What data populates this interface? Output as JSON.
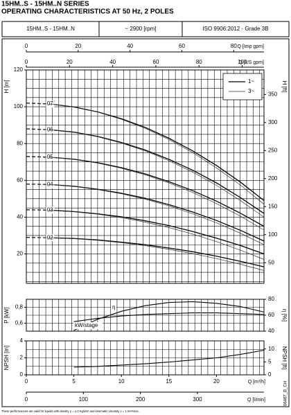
{
  "header": {
    "series_title": "15HM..S - 15HM..N SERIES",
    "subtitle": "OPERATING CHARACTERISTICS AT 50 Hz, 2 POLES",
    "model": "15HM..S - 15HM..N",
    "speed": "~ 2900 [rpm]",
    "standard": "ISO 9906:2012 - Grade 3B"
  },
  "chart_data": [
    {
      "type": "line",
      "xlim": [
        0,
        25
      ],
      "top_axes": [
        {
          "label": "Q [Imp gpm]",
          "xlim": [
            0,
            91.67
          ],
          "xticks": [
            0,
            20,
            40,
            60,
            80
          ],
          "grid": [
            0,
            2.5,
            5,
            7.5,
            10,
            12.5,
            15,
            17.5,
            20,
            22.5,
            25,
            27.5,
            30,
            32.5,
            35,
            37.5,
            40,
            42.5,
            45,
            47.5,
            50,
            52.5,
            55,
            57.5,
            60,
            62.5,
            65,
            67.5,
            70,
            72.5,
            75,
            77.5,
            80,
            82.5,
            85,
            87.5,
            90
          ]
        },
        {
          "label": "Q [US gpm]",
          "xlim": [
            0,
            110.07
          ],
          "xticks": [
            0,
            20,
            40,
            60,
            80,
            100
          ]
        }
      ],
      "y_label": "H [m]",
      "ylim": [
        4,
        120
      ],
      "yticks": [
        20,
        40,
        60,
        80,
        100,
        120
      ],
      "ygrid": [
        5,
        10,
        15,
        20,
        25,
        30,
        35,
        40,
        45,
        50,
        55,
        60,
        65,
        70,
        75,
        80,
        85,
        90,
        95,
        100,
        105,
        110,
        115,
        120
      ],
      "y2_label": "H [ft]",
      "y2lim": [
        13.12,
        393.7
      ],
      "y2ticks": [
        50,
        100,
        150,
        200,
        250,
        300,
        350
      ],
      "legend": "upper right",
      "x": [
        0,
        2.5,
        5,
        7.5,
        10,
        12.5,
        15,
        17.5,
        20,
        22.5,
        25
      ],
      "stages": [
        "07",
        "06",
        "05",
        "04",
        "03",
        "02"
      ],
      "series": [
        {
          "name": "1~",
          "color": "#000000",
          "values": [
            [
              102,
              101.5,
              99.9,
              97.2,
              93.5,
              88.8,
              82.9,
              76.0,
              68.1,
              59.1,
              49
            ],
            [
              88,
              87.5,
              86.2,
              83.9,
              80.6,
              76.5,
              71.4,
              65.5,
              58.6,
              50.7,
              42
            ],
            [
              73,
              72.6,
              71.5,
              69.6,
              66.9,
              63.5,
              59.3,
              54.4,
              48.7,
              42.2,
              35
            ],
            [
              58,
              57.7,
              56.8,
              55.2,
              53,
              50.3,
              46.8,
              42.8,
              38.2,
              32.9,
              27
            ],
            [
              44,
              43.8,
              43,
              41.8,
              40.2,
              38,
              35.4,
              32.2,
              28.6,
              24.6,
              20
            ],
            [
              29,
              28.8,
              28.4,
              27.6,
              26.4,
              25,
              23.2,
              21.2,
              18.8,
              16,
              13
            ]
          ]
        },
        {
          "name": "3~",
          "color": "#333333",
          "values": [
            [
              102,
              101.5,
              99.8,
              97.1,
              93.2,
              88.3,
              82.2,
              75.1,
              66.8,
              57.5,
              47
            ],
            [
              88,
              87.5,
              86.1,
              83.7,
              80.3,
              76,
              70.7,
              64.5,
              57.3,
              49.1,
              40
            ],
            [
              73,
              72.6,
              71.4,
              69.4,
              66.6,
              63,
              58.6,
              53.4,
              47.4,
              40.6,
              33
            ],
            [
              58,
              57.7,
              56.7,
              55,
              52.7,
              49.8,
              46.1,
              41.8,
              36.9,
              31.3,
              25
            ],
            [
              44,
              43.7,
              42.9,
              41.6,
              39.7,
              37.3,
              34.3,
              30.8,
              26.7,
              22.1,
              17
            ],
            [
              29,
              28.8,
              28.3,
              27.4,
              26.1,
              24.5,
              22.5,
              20.2,
              17.5,
              14.4,
              11
            ]
          ]
        }
      ]
    },
    {
      "type": "line",
      "xlim": [
        0,
        25
      ],
      "y_label": "P [kW]",
      "ylim": [
        0.5,
        0.9
      ],
      "yticks": [
        {
          "value": 0.6,
          "label": "0,6"
        },
        {
          "value": 0.8,
          "label": "0,8"
        }
      ],
      "ygrid": [
        0.6,
        0.7,
        0.8
      ],
      "y2_label": "η [%]",
      "y2lim": [
        40,
        80
      ],
      "y2ticks": [
        40,
        60,
        80
      ],
      "x": [
        5,
        7.5,
        10,
        12.5,
        15,
        17.5,
        20,
        22.5,
        25
      ],
      "series": [
        {
          "name": "kW/stage",
          "color": "#000000",
          "values": [
            0.62,
            0.66,
            0.69,
            0.71,
            0.72,
            0.73,
            0.73,
            0.72,
            0.71
          ]
        },
        {
          "name": "η",
          "color": "#000000",
          "axis": "y2",
          "values": [
            41,
            55,
            65,
            72,
            76,
            77,
            75,
            71,
            64
          ]
        }
      ]
    },
    {
      "type": "line",
      "xlim": [
        0,
        25
      ],
      "xticks": [
        0,
        5,
        10,
        15,
        20
      ],
      "x_label": "Q [m³/h]",
      "x2lim": [
        0,
        416.67
      ],
      "x2ticks": [
        0,
        100,
        200,
        300
      ],
      "x2_label": "Q [l/min]",
      "y_label": "NPSH [m]",
      "ylim": [
        0,
        4
      ],
      "yticks": [
        0,
        2,
        4
      ],
      "ygrid": [
        1,
        2,
        3
      ],
      "y2_label": "NPSH [ft]",
      "y2lim": [
        0,
        13.12
      ],
      "y2ticks": [
        0,
        5,
        10
      ],
      "x": [
        5,
        7.5,
        10,
        12.5,
        15,
        17.5,
        20,
        22.5,
        25
      ],
      "values": [
        0.9,
        1.0,
        1.15,
        1.3,
        1.5,
        1.75,
        2.0,
        2.4,
        2.9
      ],
      "color": "#000000"
    }
  ],
  "footnote": "These performances are valid for liquids with density ρ = 1.0 Kg/dm³ and kinematic viscosity ν = 1 mm²/sec.",
  "code": "06467_B_CH"
}
